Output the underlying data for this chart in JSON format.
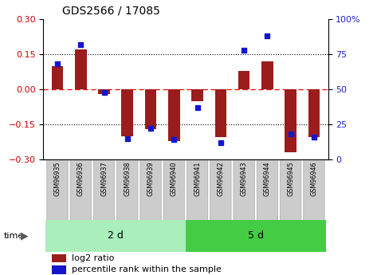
{
  "title": "GDS2566 / 17085",
  "samples": [
    "GSM96935",
    "GSM96936",
    "GSM96937",
    "GSM96938",
    "GSM96939",
    "GSM96940",
    "GSM96941",
    "GSM96942",
    "GSM96943",
    "GSM96944",
    "GSM96945",
    "GSM96946"
  ],
  "log2_ratio": [
    0.1,
    0.17,
    -0.02,
    -0.2,
    -0.17,
    -0.22,
    -0.05,
    -0.205,
    0.08,
    0.12,
    -0.27,
    -0.205
  ],
  "percentile": [
    68,
    82,
    48,
    15,
    22,
    14,
    37,
    12,
    78,
    88,
    18,
    16
  ],
  "bar_color": "#9B1C1C",
  "dot_color": "#1515CC",
  "ylim": [
    -0.3,
    0.3
  ],
  "yticks_left": [
    -0.3,
    -0.15,
    0.0,
    0.15,
    0.3
  ],
  "yticks_right": [
    0,
    25,
    50,
    75,
    100
  ],
  "group1_label": "2 d",
  "group2_label": "5 d",
  "group1_count": 6,
  "time_label": "time",
  "legend_bar_label": "log2 ratio",
  "legend_dot_label": "percentile rank within the sample",
  "tick_label_color_left": "#CC0000",
  "tick_label_color_right": "#2222CC",
  "bar_width": 0.5,
  "group_color1": "#AAEEBB",
  "group_color2": "#44CC44",
  "sample_box_color": "#CCCCCC",
  "sample_box_edge": "#AAAAAA"
}
